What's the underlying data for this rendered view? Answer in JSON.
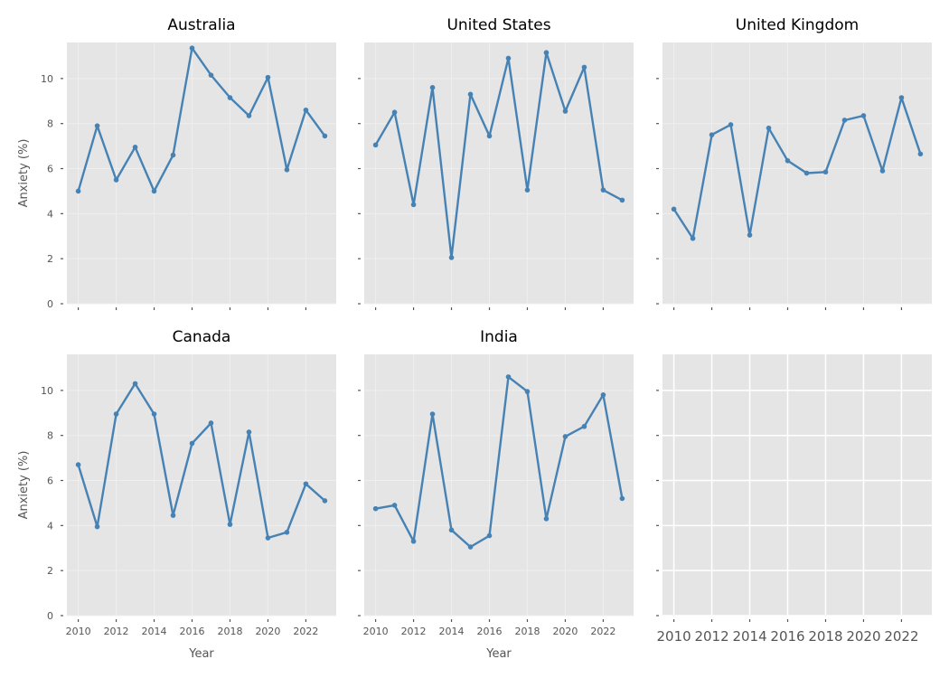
{
  "chart_data": {
    "type": "line",
    "x": [
      2010,
      2011,
      2012,
      2013,
      2014,
      2015,
      2016,
      2017,
      2018,
      2019,
      2020,
      2021,
      2022,
      2023
    ],
    "xticks": [
      "2010",
      "2012",
      "2014",
      "2016",
      "2018",
      "2020",
      "2022"
    ],
    "yticks": [
      "0",
      "2",
      "4",
      "6",
      "8",
      "10"
    ],
    "xlim": [
      2009.4,
      2023.6
    ],
    "ylim": [
      0,
      11.6
    ],
    "xlabel": "Year",
    "ylabel": "Anxiety (%)",
    "line_color": "#4682b4",
    "panel_background": "#e5e5e5",
    "grid": true,
    "panels": [
      {
        "title": "Australia",
        "values": [
          5.0,
          7.9,
          5.5,
          6.95,
          5.0,
          6.6,
          11.35,
          10.15,
          9.15,
          8.35,
          10.05,
          5.95,
          8.6,
          7.45
        ]
      },
      {
        "title": "United States",
        "values": [
          7.05,
          8.5,
          4.4,
          9.6,
          2.05,
          9.3,
          7.45,
          10.9,
          5.05,
          11.15,
          8.55,
          10.5,
          5.05,
          4.6
        ]
      },
      {
        "title": "United Kingdom",
        "values": [
          4.2,
          2.9,
          7.5,
          7.95,
          3.05,
          7.8,
          6.35,
          5.8,
          5.85,
          8.15,
          8.35,
          5.9,
          9.15,
          6.65
        ]
      },
      {
        "title": "Canada",
        "values": [
          6.7,
          3.95,
          8.95,
          10.3,
          8.95,
          4.45,
          7.65,
          8.55,
          4.05,
          8.15,
          3.45,
          3.7,
          5.85,
          5.1
        ]
      },
      {
        "title": "India",
        "values": [
          4.75,
          4.9,
          3.3,
          8.95,
          3.8,
          3.05,
          3.55,
          10.6,
          9.95,
          4.3,
          7.95,
          8.4,
          9.8,
          5.2
        ]
      },
      {
        "title": "",
        "values": []
      }
    ]
  }
}
